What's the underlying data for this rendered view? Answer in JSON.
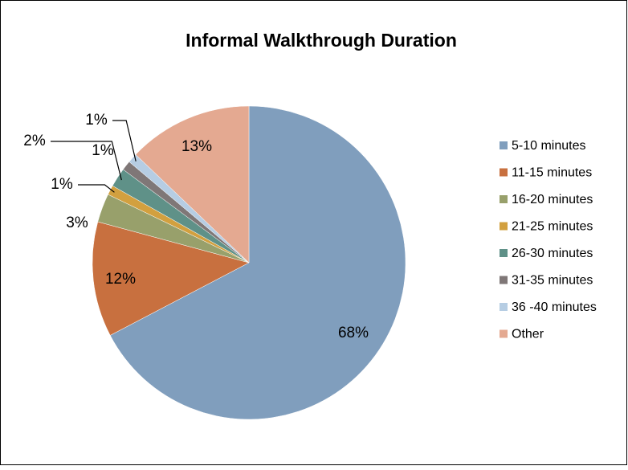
{
  "chart_data": {
    "type": "pie",
    "title": "Informal Walkthrough  Duration",
    "categories": [
      "5-10 minutes",
      "11-15 minutes",
      "16-20 minutes",
      "21-25 minutes",
      "26-30 minutes",
      "31-35 minutes",
      "36 -40 minutes",
      "Other"
    ],
    "values": [
      68,
      12,
      3,
      1,
      2,
      1,
      1,
      13
    ],
    "value_labels": [
      "68%",
      "12%",
      "3%",
      "1%",
      "2%",
      "1%",
      "1%",
      "13%"
    ],
    "colors": [
      "#809ebd",
      "#c8703f",
      "#98a06b",
      "#d2a03f",
      "#5f9188",
      "#7f7777",
      "#b6cde3",
      "#e4a991"
    ],
    "legend": "right"
  }
}
